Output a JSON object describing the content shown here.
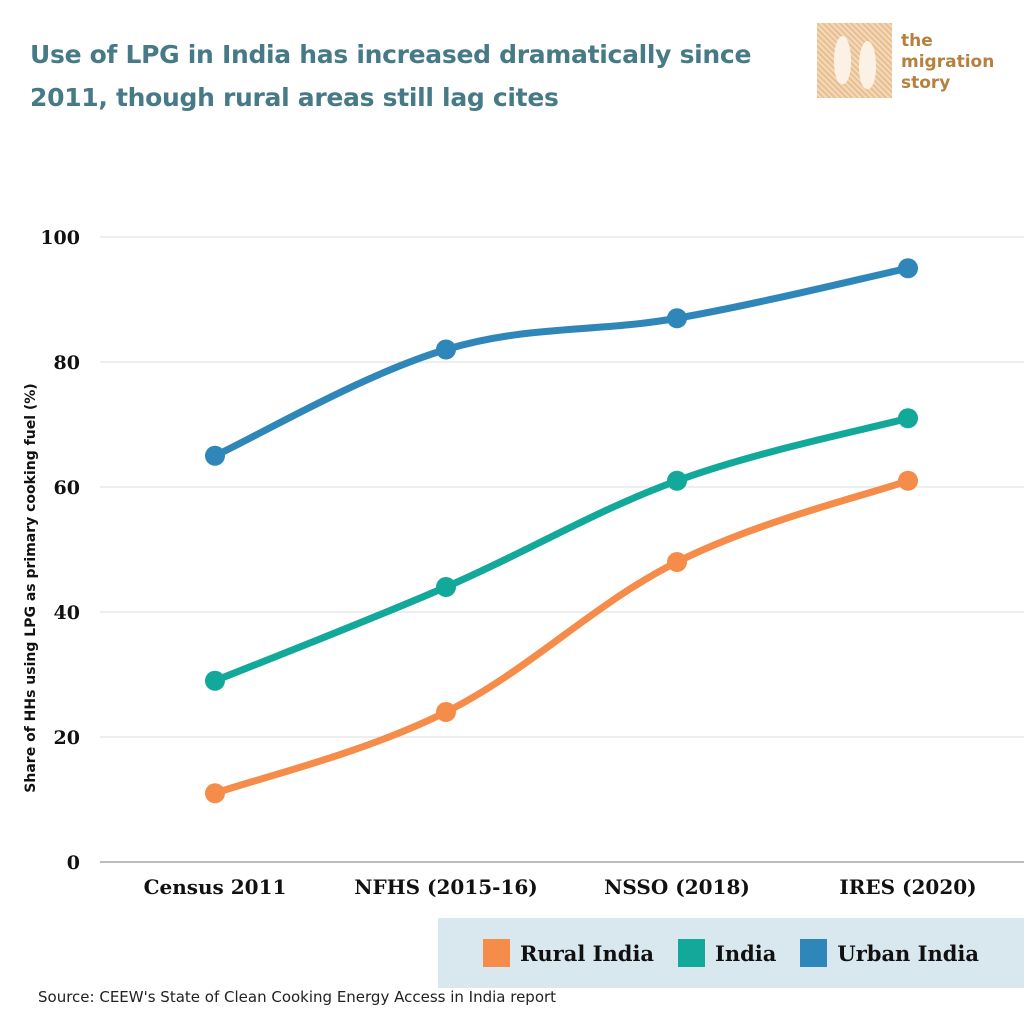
{
  "header": {
    "title": "Use of LPG in India has increased dramatically since 2011, though rural areas still lag cites"
  },
  "logo": {
    "lines": [
      "the",
      "migration",
      "story"
    ]
  },
  "source": "Source: CEEW's State of Clean Cooking Energy Access in India report",
  "chart_data": {
    "type": "line",
    "title": "Use of LPG in India has increased dramatically since 2011, though rural areas still lag cites",
    "xlabel": "",
    "ylabel": "Share of HHs using LPG as primary cooking fuel (%)",
    "categories": [
      "Census 2011",
      "NFHS (2015-16)",
      "NSSO (2018)",
      "IRES (2020)"
    ],
    "ylim": [
      0,
      100
    ],
    "yticks": [
      0,
      20,
      40,
      60,
      80,
      100
    ],
    "grid": true,
    "legend_position": "bottom-right",
    "series": [
      {
        "name": "Urban India",
        "color": "#2e86b9",
        "values": [
          65,
          82,
          87,
          95
        ]
      },
      {
        "name": "India",
        "color": "#12a89a",
        "values": [
          29,
          44,
          61,
          71
        ]
      },
      {
        "name": "Rural India",
        "color": "#f68c4a",
        "values": [
          11,
          24,
          48,
          61
        ]
      }
    ],
    "legend": [
      {
        "name": "Rural India",
        "color": "#f68c4a"
      },
      {
        "name": "India",
        "color": "#12a89a"
      },
      {
        "name": "Urban India",
        "color": "#2e86b9"
      }
    ]
  }
}
